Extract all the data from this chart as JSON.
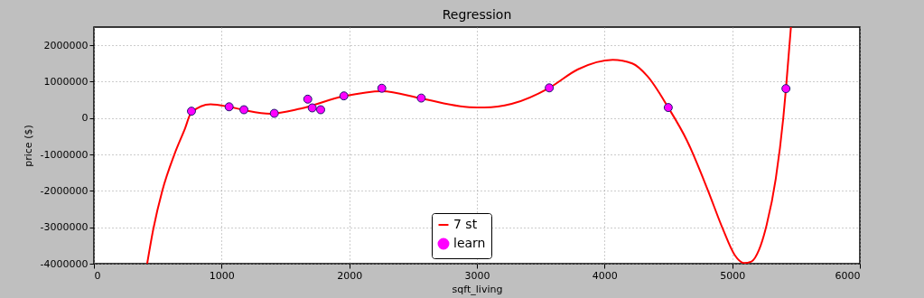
{
  "chart_data": {
    "type": "scatter",
    "title": "Regression",
    "xlabel": "sqft_living",
    "ylabel": "price ($)",
    "xlim": [
      0,
      6000
    ],
    "xticks": [
      0,
      1000,
      2000,
      3000,
      4000,
      5000,
      6000
    ],
    "ylim": [
      -4000000,
      2500000
    ],
    "yticks": [
      -4000000,
      -3000000,
      -2000000,
      -1000000,
      0,
      1000000,
      2000000
    ],
    "grid": true,
    "legend": "bottom",
    "series": [
      {
        "name": "7 st",
        "type": "line",
        "color": "#ff0000",
        "line_style": "solid",
        "marker": "none",
        "x": [
          417,
          465,
          535,
          630,
          712,
          764,
          913,
          1059,
          1177,
          1384,
          1620,
          1958,
          2257,
          2564,
          2941,
          3059,
          3272,
          3567,
          3792,
          4064,
          4217,
          4336,
          4499,
          4643,
          4809,
          4927,
          5021,
          5092,
          5151,
          5210,
          5270,
          5341,
          5400,
          5421,
          5460
        ],
        "values": [
          -4000000,
          -3050000,
          -2000000,
          -1000000,
          -300000,
          160000,
          380000,
          310000,
          220000,
          120000,
          260000,
          600000,
          740000,
          540000,
          300000,
          290000,
          390000,
          830000,
          1340000,
          1600000,
          1500000,
          1150000,
          290000,
          -600000,
          -1980000,
          -3050000,
          -3770000,
          -3980000,
          -3940000,
          -3620000,
          -2930000,
          -1670000,
          0,
          810000,
          2500000
        ]
      },
      {
        "name": "learn",
        "color": "#ff00ff",
        "marker": "circle",
        "x": [
          764,
          1059,
          1175,
          1413,
          1675,
          1710,
          1776,
          1958,
          2255,
          2564,
          3567,
          4499,
          5421
        ],
        "values": [
          190000,
          310000,
          230000,
          130000,
          520000,
          280000,
          230000,
          610000,
          820000,
          550000,
          830000,
          290000,
          810000
        ]
      }
    ]
  }
}
